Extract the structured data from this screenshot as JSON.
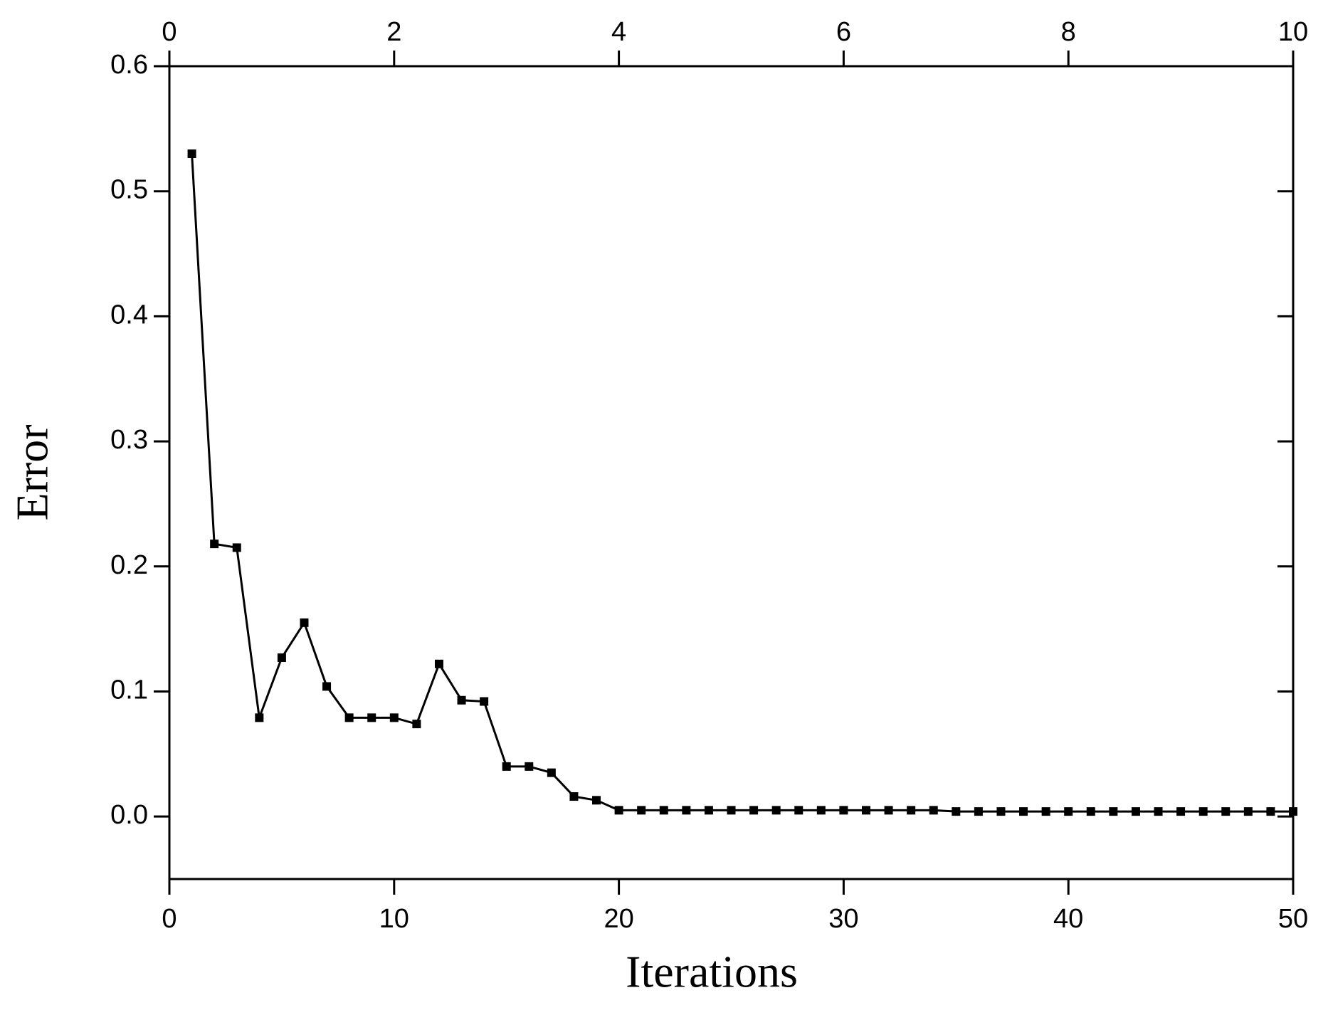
{
  "chart_data": {
    "type": "line",
    "x_label": "Iterations",
    "y_label": "Error",
    "x": [
      1,
      2,
      3,
      4,
      5,
      6,
      7,
      8,
      9,
      10,
      11,
      12,
      13,
      14,
      15,
      16,
      17,
      18,
      19,
      20,
      21,
      22,
      23,
      24,
      25,
      26,
      27,
      28,
      29,
      30,
      31,
      32,
      33,
      34,
      35,
      36,
      37,
      38,
      39,
      40,
      41,
      42,
      43,
      44,
      45,
      46,
      47,
      48,
      49,
      50
    ],
    "series": [
      {
        "color": "#000000",
        "values": [
          0.53,
          0.218,
          0.215,
          0.079,
          0.127,
          0.155,
          0.104,
          0.079,
          0.079,
          0.079,
          0.074,
          0.122,
          0.093,
          0.092,
          0.04,
          0.04,
          0.035,
          0.016,
          0.013,
          0.005,
          0.005,
          0.005,
          0.005,
          0.005,
          0.005,
          0.005,
          0.005,
          0.005,
          0.005,
          0.005,
          0.005,
          0.005,
          0.005,
          0.005,
          0.004,
          0.004,
          0.004,
          0.004,
          0.004,
          0.004,
          0.004,
          0.004,
          0.004,
          0.004,
          0.004,
          0.004,
          0.004,
          0.004,
          0.004,
          0.004
        ]
      }
    ],
    "xlim": [
      0,
      50
    ],
    "xticks": [
      0,
      10,
      20,
      30,
      40,
      50
    ],
    "x2lim": [
      0,
      10
    ],
    "x2ticks": [
      0,
      2,
      4,
      6,
      8,
      10
    ],
    "ylim": [
      -0.05,
      0.6
    ],
    "yticks": [
      {
        "value": 0,
        "label": "0.0"
      },
      0.1,
      0.2,
      0.3,
      0.4,
      0.5,
      0.6
    ],
    "grid": false
  }
}
